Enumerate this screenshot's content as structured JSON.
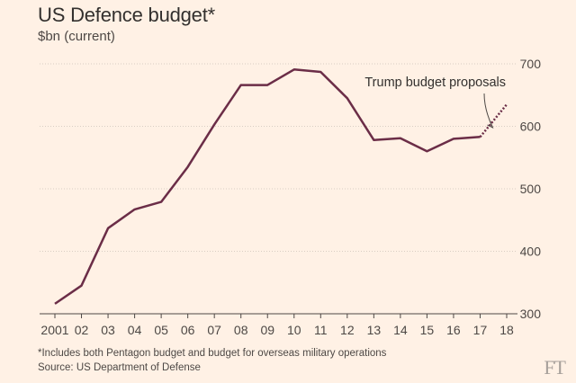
{
  "header": {
    "title": "US Defence budget*",
    "subtitle": "$bn (current)"
  },
  "footer": {
    "footnote": "*Includes both Pentagon budget and budget for overseas military operations",
    "source": "Source: US Department of Defense",
    "logo": "FT"
  },
  "chart_data": {
    "type": "line",
    "title": "US Defence budget*",
    "ylabel": "$bn (current)",
    "xlabel": "",
    "x": [
      "2001",
      "02",
      "03",
      "04",
      "05",
      "06",
      "07",
      "08",
      "09",
      "10",
      "11",
      "12",
      "13",
      "14",
      "15",
      "16",
      "17",
      "18"
    ],
    "series": [
      {
        "values": [
          316,
          345,
          437,
          467,
          479,
          535,
          603,
          666,
          666,
          691,
          687,
          645,
          578,
          581,
          560,
          580,
          583,
          null
        ],
        "style": "solid",
        "color": "#6b2d47"
      },
      {
        "values": [
          null,
          null,
          null,
          null,
          null,
          null,
          null,
          null,
          null,
          null,
          null,
          null,
          null,
          null,
          null,
          null,
          583,
          635
        ],
        "style": "dotted",
        "color": "#6b2d47"
      }
    ],
    "ylim": [
      300,
      700
    ],
    "yticks": [
      300,
      400,
      500,
      600,
      700
    ],
    "grid": true,
    "legend": "none",
    "annotations": [
      {
        "text": "Trump budget proposals",
        "x": "18",
        "y": 625
      }
    ]
  }
}
